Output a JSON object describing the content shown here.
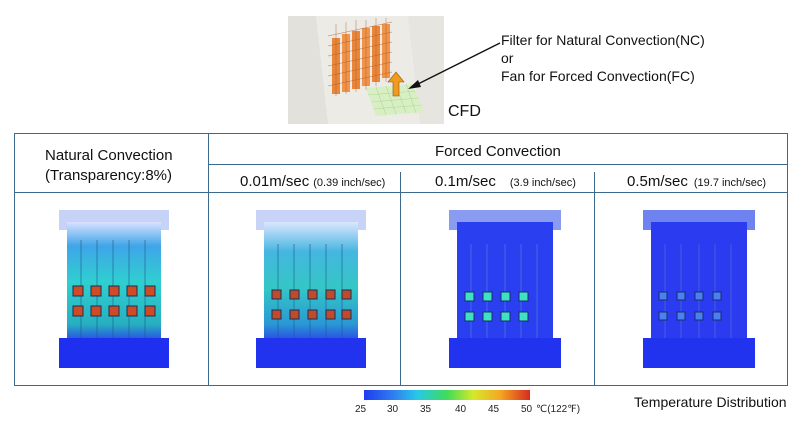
{
  "figure": {
    "caption": "CFD",
    "callout": {
      "line1": "Filter for Natural Convection(NC)",
      "line2": "or",
      "line3": "Fan for Forced Convection(FC)"
    }
  },
  "table": {
    "natural_header": {
      "line1": "Natural Convection",
      "line2": "(Transparency:8%)"
    },
    "forced_header": "Forced Convection",
    "speeds": [
      {
        "main": "0.01m/sec",
        "sub": "(0.39 inch/sec)"
      },
      {
        "main": "0.1m/sec",
        "sub": "(3.9 inch/sec)"
      },
      {
        "main": "0.5m/sec",
        "sub": "(19.7 inch/sec)"
      }
    ]
  },
  "legend": {
    "ticks": [
      "25",
      "30",
      "35",
      "40",
      "45",
      "50"
    ],
    "unit": "℃(122℉)",
    "title": "Temperature Distribution",
    "colors": [
      "#1f3cf0",
      "#2f7ff0",
      "#27c8e8",
      "#3fdc5a",
      "#d6e82a",
      "#f4a722",
      "#d62b1e"
    ]
  }
}
